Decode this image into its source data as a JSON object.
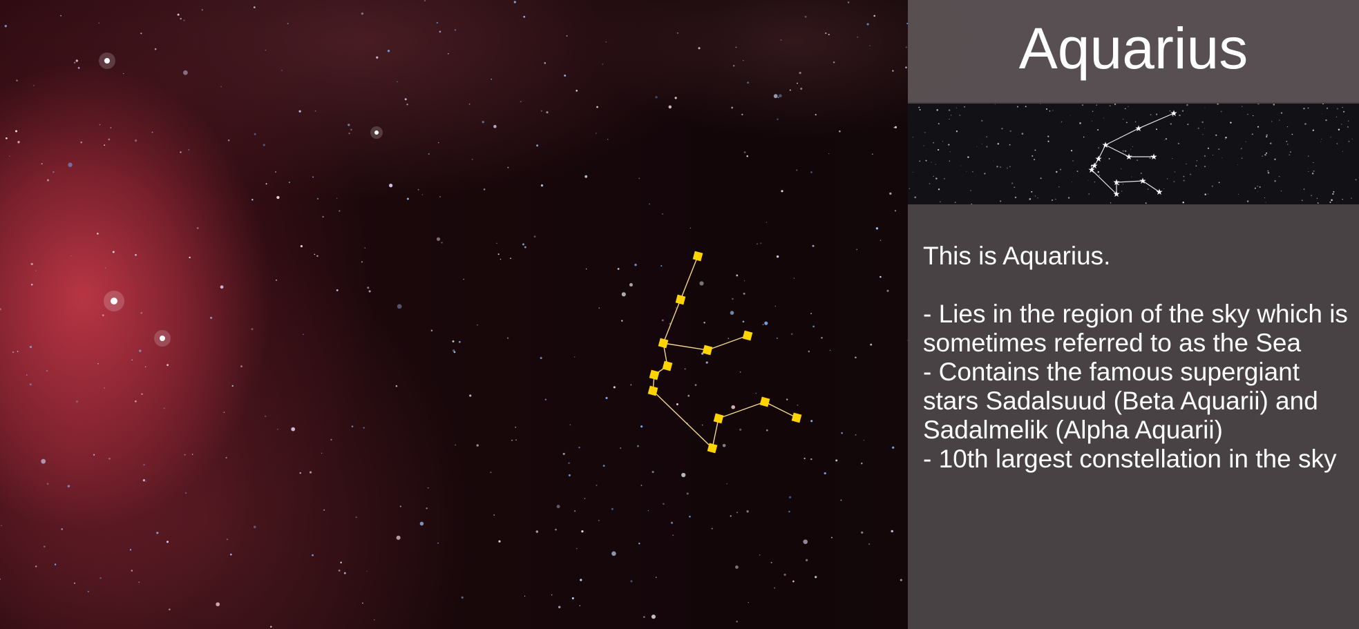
{
  "constellation": {
    "name": "Aquarius",
    "marker_color": "#ffd400",
    "line_color": "#f5d98a"
  },
  "panel": {
    "title": "Aquarius",
    "intro": "This is Aquarius.",
    "facts": [
      "- Lies in the region of the sky which is sometimes referred to as the Sea",
      "- Contains the famous supergiant stars Sadalsuud (Beta Aquarii) and Sadalmelik (Alpha Aquarii)",
      "- 10th largest constellation in the sky"
    ]
  },
  "colors": {
    "nebula": "#c03a48",
    "panel_bg": "#4e484a",
    "text": "#ffffff"
  }
}
